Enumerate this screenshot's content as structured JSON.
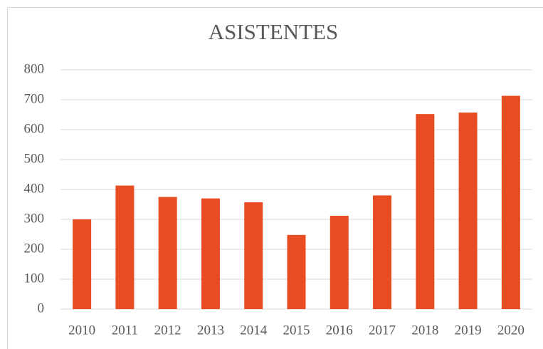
{
  "chart_data": {
    "type": "bar",
    "title": "ASISTENTES",
    "categories": [
      "2010",
      "2011",
      "2012",
      "2013",
      "2014",
      "2015",
      "2016",
      "2017",
      "2018",
      "2019",
      "2020"
    ],
    "values": [
      300,
      413,
      375,
      370,
      357,
      248,
      312,
      380,
      652,
      657,
      713
    ],
    "color": "#e84c22",
    "ylim": [
      0,
      800
    ],
    "yticks": [
      0,
      100,
      200,
      300,
      400,
      500,
      600,
      700,
      800
    ],
    "grid": true
  }
}
